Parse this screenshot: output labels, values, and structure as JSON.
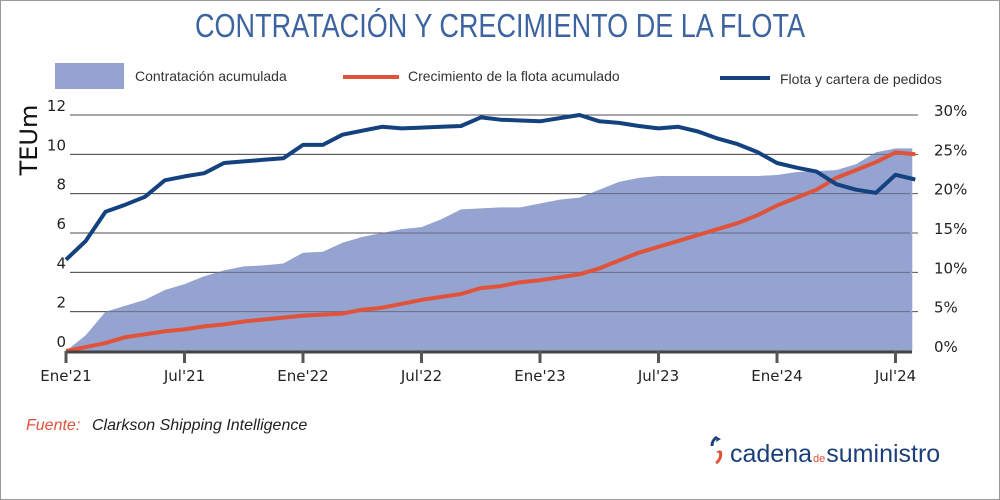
{
  "chart_data": {
    "type": "area+line",
    "title": "CONTRATACIÓN Y CRECIMIENTO DE LA FLOTA",
    "ylabel": "TEUm",
    "ylim": [
      0,
      12
    ],
    "y_ticks": [
      "0",
      "2",
      "4",
      "6",
      "8",
      "10",
      "12"
    ],
    "y2lim": [
      0,
      30
    ],
    "y2_ticks": [
      "0%",
      "5%",
      "10%",
      "15%",
      "20%",
      "25%",
      "30%"
    ],
    "x_tick_labels": [
      "Ene'21",
      "Jul'21",
      "Ene'22",
      "Jul'22",
      "Ene'23",
      "Jul'23",
      "Ene'24",
      "Jul'24"
    ],
    "x_months": [
      "2021-01",
      "2021-02",
      "2021-03",
      "2021-04",
      "2021-05",
      "2021-06",
      "2021-07",
      "2021-08",
      "2021-09",
      "2021-10",
      "2021-11",
      "2021-12",
      "2022-01",
      "2022-02",
      "2022-03",
      "2022-04",
      "2022-05",
      "2022-06",
      "2022-07",
      "2022-08",
      "2022-09",
      "2022-10",
      "2022-11",
      "2022-12",
      "2023-01",
      "2023-02",
      "2023-03",
      "2023-04",
      "2023-05",
      "2023-06",
      "2023-07",
      "2023-08",
      "2023-09",
      "2023-10",
      "2023-11",
      "2023-12",
      "2024-01",
      "2024-02",
      "2024-03",
      "2024-04",
      "2024-05",
      "2024-06",
      "2024-07",
      "2024-08"
    ],
    "grid": true,
    "legend": "top",
    "series": [
      {
        "name": "Contratación acumulada",
        "type": "area",
        "axis": "left",
        "color": "#94a3cf",
        "values": [
          0,
          0.8,
          2.0,
          2.3,
          2.6,
          3.1,
          3.4,
          3.8,
          4.1,
          4.3,
          4.35,
          4.45,
          5.0,
          5.05,
          5.5,
          5.8,
          6.0,
          6.2,
          6.3,
          6.7,
          7.2,
          7.25,
          7.3,
          7.3,
          7.5,
          7.7,
          7.8,
          8.2,
          8.6,
          8.8,
          8.9,
          8.9,
          8.9,
          8.9,
          8.9,
          8.9,
          8.95,
          9.1,
          9.15,
          9.2,
          9.5,
          10.1,
          10.3,
          10.3
        ]
      },
      {
        "name": "Crecimiento de la flota acumulado",
        "type": "line",
        "axis": "left",
        "color": "#e0533a",
        "values": [
          0,
          0.2,
          0.4,
          0.7,
          0.85,
          1.0,
          1.1,
          1.25,
          1.35,
          1.5,
          1.6,
          1.7,
          1.8,
          1.85,
          1.9,
          2.1,
          2.2,
          2.4,
          2.6,
          2.75,
          2.9,
          3.2,
          3.3,
          3.5,
          3.6,
          3.75,
          3.9,
          4.2,
          4.6,
          5.0,
          5.3,
          5.6,
          5.9,
          6.2,
          6.5,
          6.9,
          7.4,
          7.8,
          8.2,
          8.8,
          9.2,
          9.6,
          10.1,
          10.0
        ]
      },
      {
        "name": "Flota y cartera de pedidos",
        "type": "line",
        "axis": "right",
        "color": "#14427f",
        "values": [
          11.6,
          14.0,
          17.7,
          18.6,
          19.6,
          21.7,
          22.2,
          22.6,
          23.9,
          24.1,
          24.3,
          24.5,
          26.2,
          26.2,
          27.5,
          28.0,
          28.5,
          28.3,
          28.4,
          28.5,
          28.6,
          29.7,
          29.4,
          29.3,
          29.2,
          29.6,
          30.0,
          29.2,
          29.0,
          28.6,
          28.3,
          28.5,
          27.9,
          27.0,
          26.3,
          25.3,
          23.9,
          23.3,
          22.8,
          21.2,
          20.5,
          20.1,
          22.4,
          21.8
        ]
      }
    ]
  },
  "footer": {
    "source_label": "Fuente:",
    "source_text": "Clarkson Shipping Intelligence"
  },
  "logo": {
    "part1": "cadena",
    "part2": "de",
    "part3": "suministro"
  }
}
